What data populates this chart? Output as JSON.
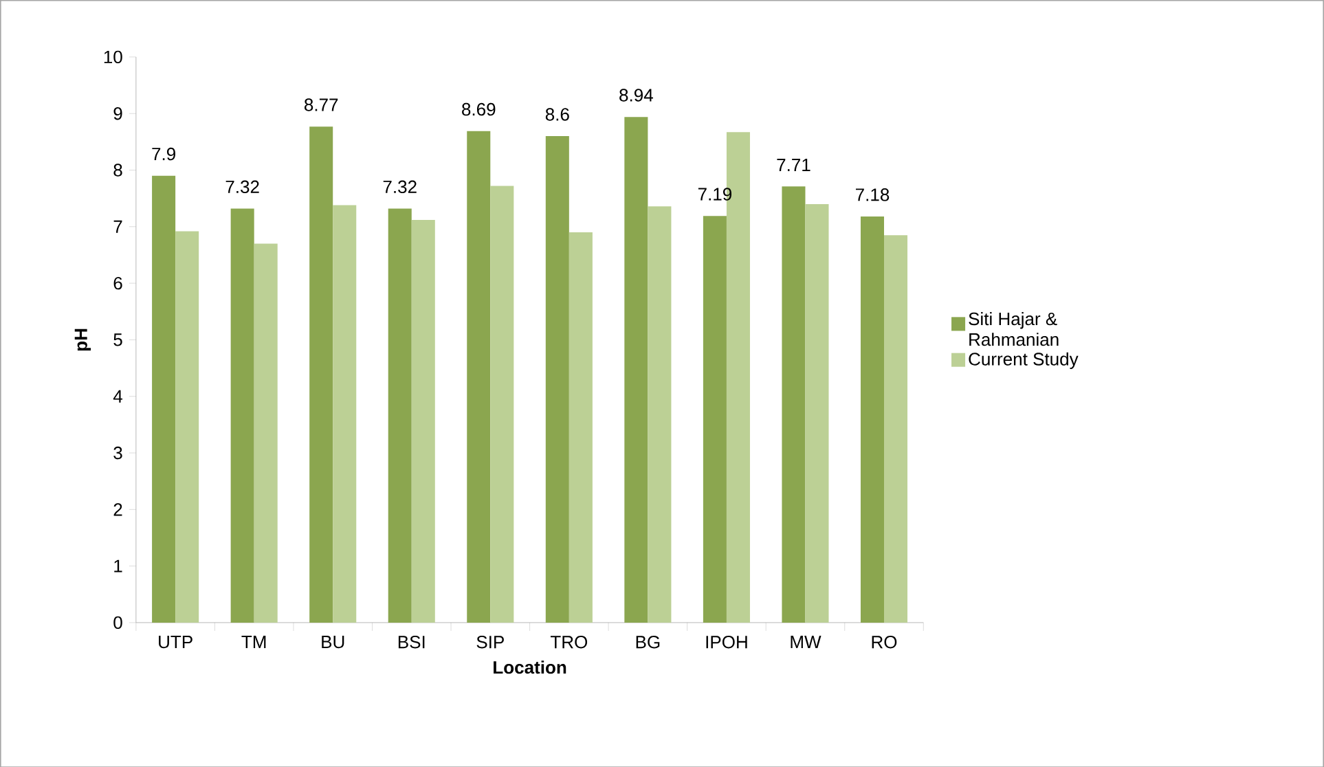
{
  "chart_data": {
    "type": "bar",
    "xlabel": "Location",
    "ylabel": "pH",
    "categories": [
      "UTP",
      "TM",
      "BU",
      "BSI",
      "SIP",
      "TRO",
      "BG",
      "IPOH",
      "MW",
      "RO"
    ],
    "series": [
      {
        "name": "Siti Hajar & Rahmanian",
        "color": "#8ba64f",
        "values": [
          7.9,
          7.32,
          8.77,
          7.32,
          8.69,
          8.6,
          8.94,
          7.19,
          7.71,
          7.18
        ],
        "value_labels": [
          "7.9",
          "7.32",
          "8.77",
          "7.32",
          "8.69",
          "8.6",
          "8.94",
          "7.19",
          "7.71",
          "7.18"
        ]
      },
      {
        "name": "Current Study",
        "color": "#bcd095",
        "values": [
          6.92,
          6.7,
          7.38,
          7.12,
          7.72,
          6.9,
          7.36,
          8.67,
          7.4,
          6.85
        ]
      }
    ],
    "ylim": [
      0,
      10
    ],
    "yticks": [
      0,
      1,
      2,
      3,
      4,
      5,
      6,
      7,
      8,
      9,
      10
    ],
    "grid": false,
    "legend": "right"
  }
}
